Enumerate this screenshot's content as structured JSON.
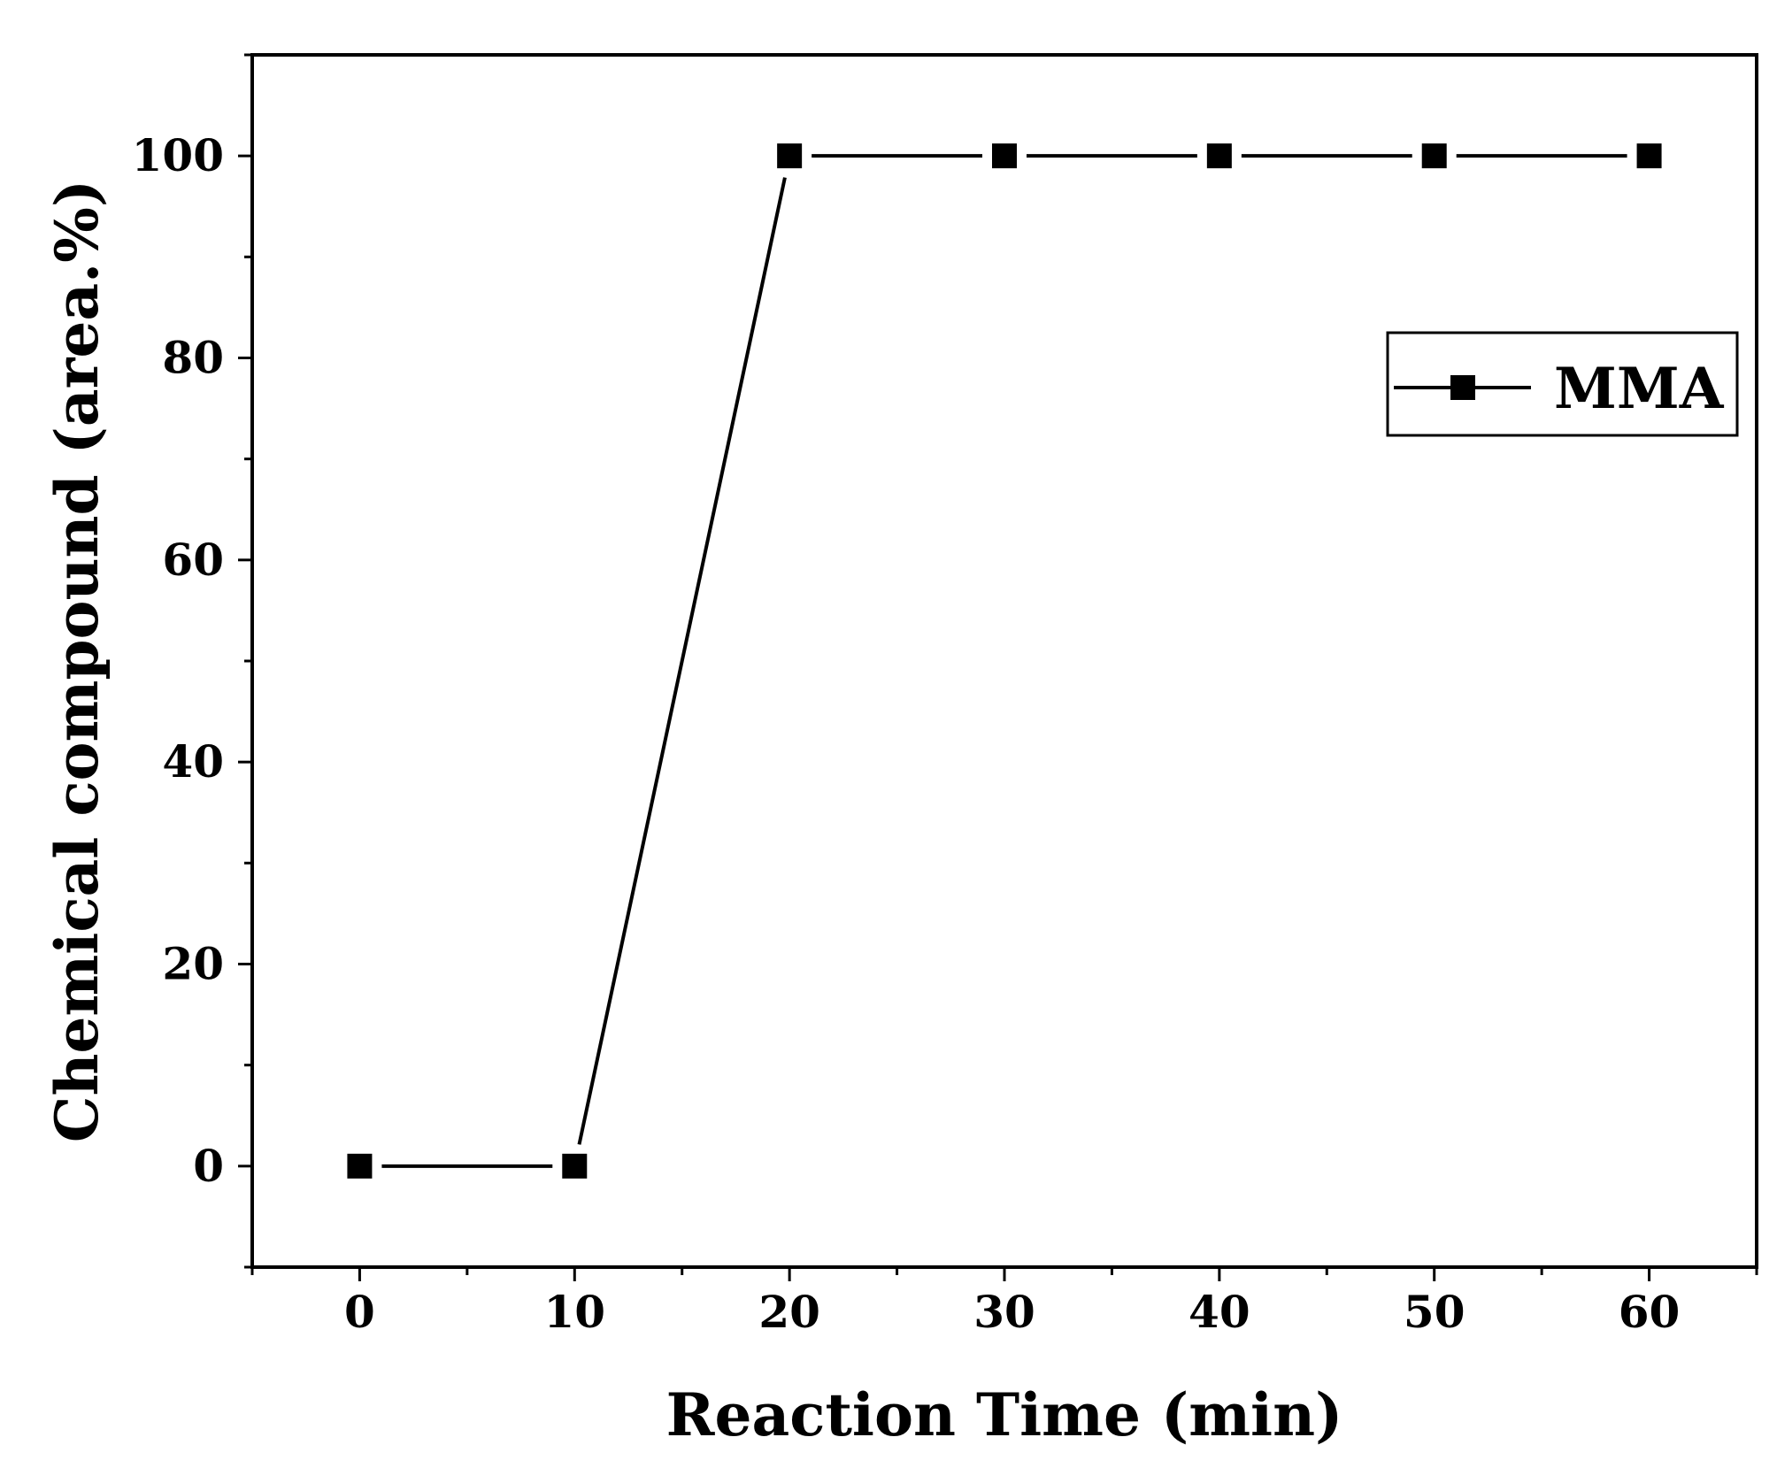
{
  "chart_data": {
    "type": "line",
    "title": "",
    "xlabel": "Reaction Time (min)",
    "ylabel": "Chemical compound (area.%)",
    "x": [
      0,
      10,
      20,
      30,
      40,
      50,
      60
    ],
    "series": [
      {
        "name": "MMA",
        "values": [
          0,
          0,
          100,
          100,
          100,
          100,
          100
        ],
        "color": "#000000",
        "marker": "square"
      }
    ],
    "xlim": [
      -5,
      65
    ],
    "ylim": [
      -10,
      110
    ],
    "xticks": [
      "0",
      "10",
      "20",
      "30",
      "40",
      "50",
      "60"
    ],
    "yticks": [
      "0",
      "20",
      "40",
      "60",
      "80",
      "100"
    ],
    "grid": false,
    "legend": "top-right"
  }
}
